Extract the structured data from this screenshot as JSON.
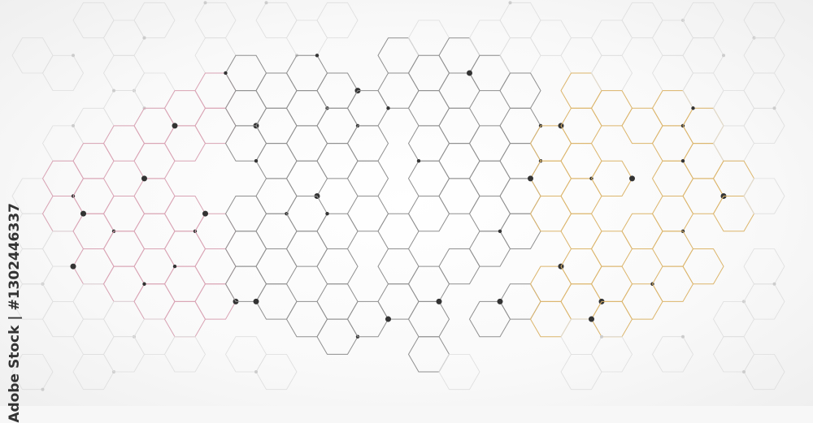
{
  "watermark": {
    "side_text": "Adobe Stock | #1302446337"
  },
  "colors": {
    "left": "#d9a3b4",
    "middle": "#8f8f8f",
    "right": "#dcb56b",
    "outer": "#dedede",
    "dot": "#333333",
    "dot_faint": "#cccccc"
  }
}
